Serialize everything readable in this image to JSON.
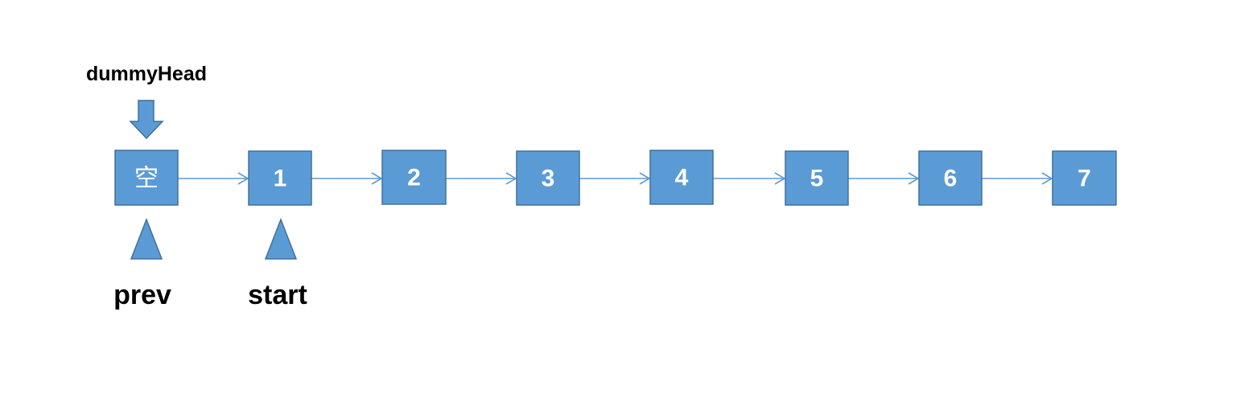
{
  "diagram": {
    "type": "linked-list",
    "nodes": [
      {
        "id": "dummy",
        "label": "空"
      },
      {
        "id": "n1",
        "label": "1"
      },
      {
        "id": "n2",
        "label": "2"
      },
      {
        "id": "n3",
        "label": "3"
      },
      {
        "id": "n4",
        "label": "4"
      },
      {
        "id": "n5",
        "label": "5"
      },
      {
        "id": "n6",
        "label": "6"
      },
      {
        "id": "n7",
        "label": "7"
      }
    ],
    "links": [
      {
        "from": "dummy",
        "to": "n1"
      },
      {
        "from": "n1",
        "to": "n2"
      },
      {
        "from": "n2",
        "to": "n3"
      },
      {
        "from": "n3",
        "to": "n4"
      },
      {
        "from": "n4",
        "to": "n5"
      },
      {
        "from": "n5",
        "to": "n6"
      },
      {
        "from": "n6",
        "to": "n7"
      }
    ],
    "pointers": {
      "dummy_head": {
        "label": "dummyHead",
        "target": "dummy",
        "direction": "above"
      },
      "prev": {
        "label": "prev",
        "target": "dummy",
        "direction": "below"
      },
      "start": {
        "label": "start",
        "target": "n1",
        "direction": "below"
      }
    }
  },
  "colors": {
    "node_fill": "#5b9bd5",
    "node_border": "#41719c",
    "label_text": "#ffffff",
    "pointer_text": "#000000"
  }
}
